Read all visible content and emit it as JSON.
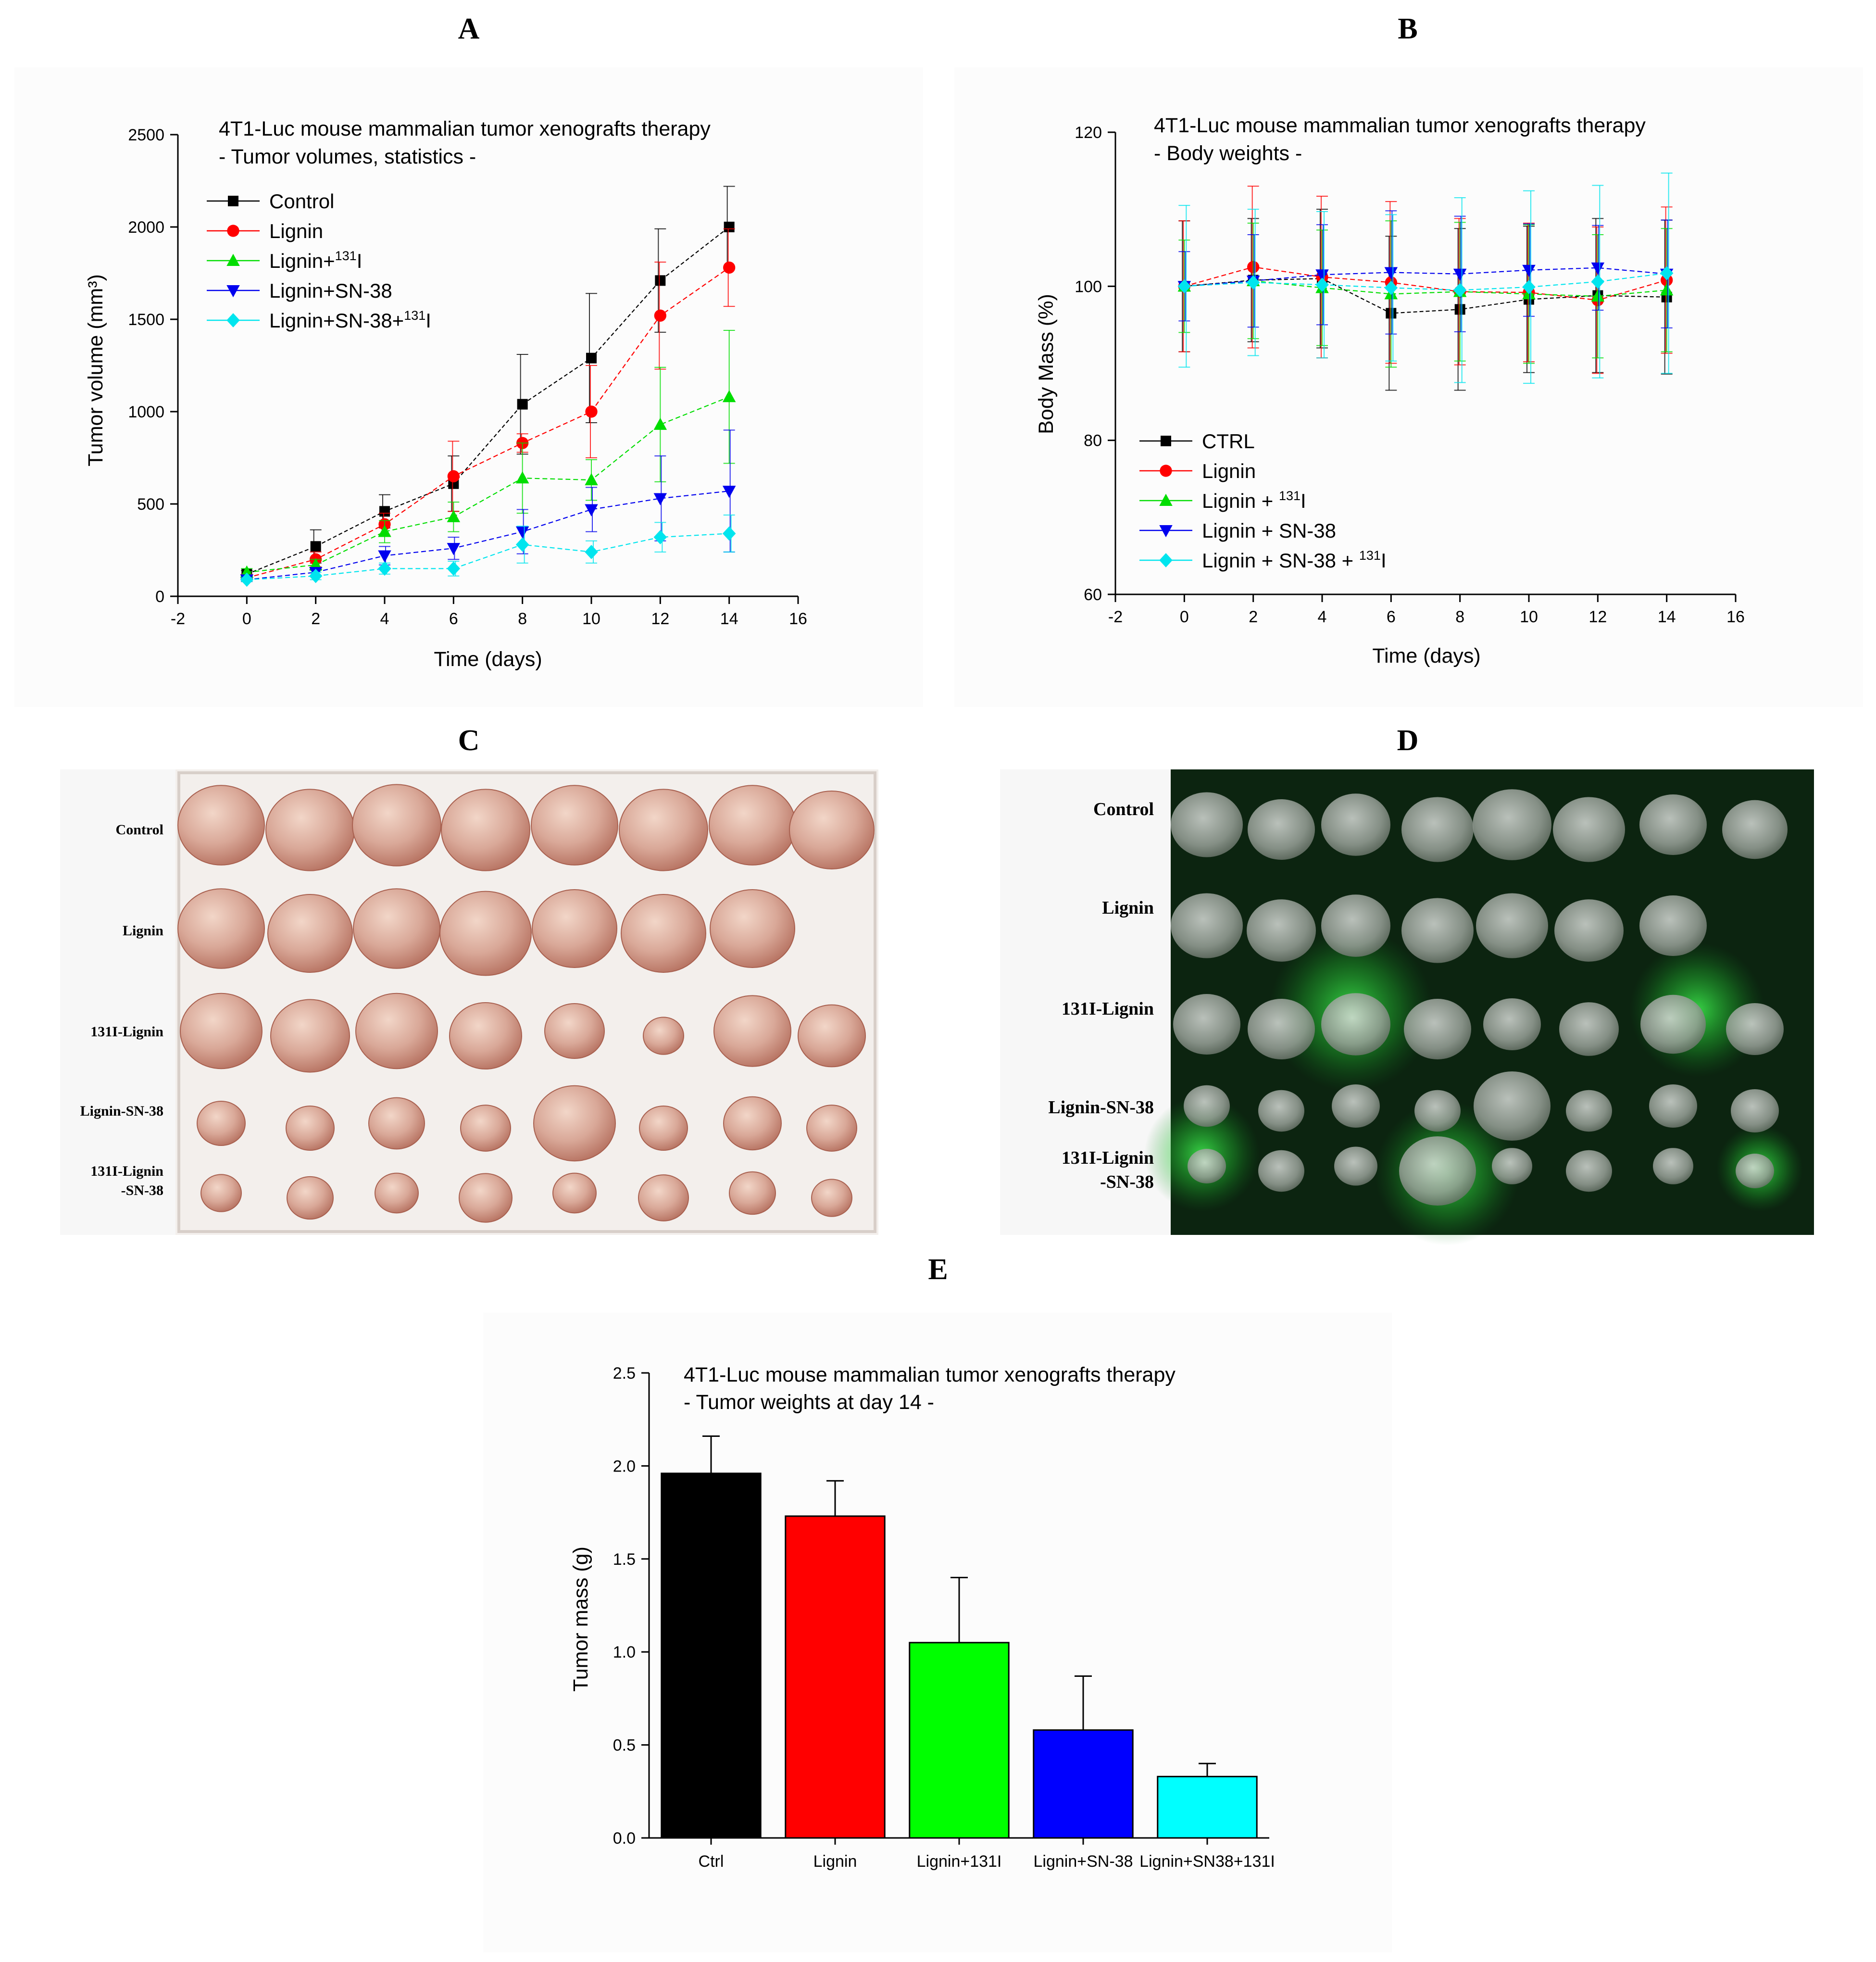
{
  "panel_letters": {
    "a": "A",
    "b": "B",
    "c": "C",
    "d": "D",
    "e": "E"
  },
  "chart_data": [
    {
      "type": "line",
      "panel": "A",
      "title": "4T1-Luc mouse mammalian tumor xenografts therapy",
      "subtitle": "- Tumor volumes, statistics -",
      "xlabel": "Time (days)",
      "ylabel": "Tumor volume (mm³)",
      "xlim": [
        -2,
        16
      ],
      "ylim": [
        0,
        2500
      ],
      "xticks": [
        -2,
        0,
        2,
        4,
        6,
        8,
        10,
        12,
        14,
        16
      ],
      "yticks": [
        0,
        500,
        1000,
        1500,
        2000,
        2500
      ],
      "x": [
        0,
        2,
        4,
        6,
        8,
        10,
        12,
        14
      ],
      "legend_position": "top-left",
      "series": [
        {
          "name": "Control",
          "sup": "",
          "color": "#000000",
          "marker": "square",
          "values": [
            120,
            270,
            460,
            610,
            1040,
            1290,
            1710,
            2000
          ],
          "errors": [
            20,
            90,
            90,
            150,
            270,
            350,
            280,
            220
          ]
        },
        {
          "name": "Lignin",
          "sup": "",
          "color": "#ff0000",
          "marker": "circle",
          "values": [
            100,
            200,
            390,
            650,
            830,
            1000,
            1520,
            1780
          ],
          "errors": [
            20,
            40,
            60,
            190,
            50,
            250,
            290,
            210
          ]
        },
        {
          "name": "Lignin+",
          "sup": "131",
          "name_suffix": "I",
          "color": "#00dd00",
          "marker": "triangle-up",
          "values": [
            130,
            170,
            350,
            430,
            640,
            630,
            930,
            1080
          ],
          "errors": [
            20,
            30,
            60,
            80,
            190,
            110,
            310,
            360
          ]
        },
        {
          "name": "Lignin+SN-38",
          "sup": "",
          "color": "#0000ee",
          "marker": "triangle-down",
          "values": [
            90,
            130,
            220,
            260,
            350,
            470,
            530,
            570
          ],
          "errors": [
            10,
            20,
            50,
            60,
            120,
            120,
            230,
            330
          ]
        },
        {
          "name": "Lignin+SN-38+",
          "sup": "131",
          "name_suffix": "I",
          "color": "#00e5ee",
          "marker": "diamond",
          "values": [
            90,
            110,
            150,
            150,
            280,
            240,
            320,
            340
          ],
          "errors": [
            10,
            20,
            30,
            40,
            100,
            60,
            80,
            100
          ]
        }
      ]
    },
    {
      "type": "line",
      "panel": "B",
      "title": "4T1-Luc mouse mammalian tumor xenografts therapy",
      "subtitle": "- Body weights -",
      "xlabel": "Time (days)",
      "ylabel": "Body Mass (%)",
      "xlim": [
        -2,
        16
      ],
      "ylim": [
        60,
        120
      ],
      "xticks": [
        -2,
        0,
        2,
        4,
        6,
        8,
        10,
        12,
        14,
        16
      ],
      "yticks": [
        60,
        80,
        100,
        120
      ],
      "x": [
        0,
        2,
        4,
        6,
        8,
        10,
        12,
        14
      ],
      "legend_position": "bottom-left",
      "series": [
        {
          "name": "CTRL",
          "sup": "",
          "color": "#000000",
          "marker": "square",
          "values": [
            100,
            100.8,
            101,
            96.5,
            97,
            98.3,
            98.8,
            98.6
          ],
          "errors": [
            8.5,
            8,
            9,
            10,
            10.5,
            9.5,
            10,
            10
          ]
        },
        {
          "name": "Lignin",
          "sup": "",
          "color": "#ff0000",
          "marker": "circle",
          "values": [
            100,
            102.5,
            101.2,
            100.5,
            99.3,
            99.2,
            98.2,
            100.8
          ],
          "errors": [
            8.5,
            10.5,
            10.5,
            10.5,
            9.5,
            9,
            9.5,
            9.5
          ]
        },
        {
          "name": "Lignin + ",
          "sup": "131",
          "name_suffix": "I",
          "color": "#00dd00",
          "marker": "triangle-up",
          "values": [
            100,
            100.7,
            99.8,
            99,
            99.3,
            99,
            98.7,
            99.5
          ],
          "errors": [
            6,
            7.5,
            7.5,
            9.5,
            9,
            9,
            8,
            8
          ]
        },
        {
          "name": "Lignin + SN-38",
          "sup": "",
          "color": "#0000ee",
          "marker": "triangle-down",
          "values": [
            100,
            100.7,
            101.5,
            101.8,
            101.6,
            102.1,
            102.4,
            101.6
          ],
          "errors": [
            4.5,
            6,
            6.5,
            8,
            7.5,
            6,
            5.5,
            7
          ]
        },
        {
          "name": "Lignin + SN-38 + ",
          "sup": "131",
          "name_suffix": "I",
          "color": "#00e5ee",
          "marker": "diamond",
          "values": [
            100,
            100.5,
            100.2,
            99.8,
            99.5,
            99.9,
            100.6,
            101.7
          ],
          "errors": [
            10.5,
            9.5,
            9.5,
            9.5,
            12,
            12.5,
            12.5,
            13
          ]
        }
      ]
    },
    {
      "type": "bar",
      "panel": "E",
      "title": "4T1-Luc mouse mammalian tumor xenografts therapy",
      "subtitle": "- Tumor weights at day 14 -",
      "xlabel": "",
      "ylabel": "Tumor mass (g)",
      "ylim": [
        0,
        2.5
      ],
      "yticks": [
        "0.0",
        "0.5",
        "1.0",
        "1.5",
        "2.0",
        "2.5"
      ],
      "categories": [
        "Ctrl",
        "Lignin",
        "Lignin+131I",
        "Lignin+SN-38",
        "Lignin+SN38+131I"
      ],
      "values": [
        1.96,
        1.73,
        1.05,
        0.58,
        0.33
      ],
      "errors": [
        0.2,
        0.19,
        0.35,
        0.29,
        0.07
      ],
      "colors": [
        "#000000",
        "#ff0000",
        "#00ff00",
        "#0000ff",
        "#00ffff"
      ]
    }
  ],
  "photos": {
    "c": {
      "row_labels": [
        [
          "Control"
        ],
        [
          "Lignin"
        ],
        [
          "131I-Lignin"
        ],
        [
          "Lignin-SN-38"
        ],
        [
          "131I-Lignin",
          "-SN-38"
        ]
      ],
      "tray_color": "#f3efec",
      "tumor_color": "#d8a89c"
    },
    "d": {
      "row_labels": [
        [
          "Control"
        ],
        [
          "Lignin"
        ],
        [
          "131I-Lignin"
        ],
        [
          "Lignin-SN-38"
        ],
        [
          "131I-Lignin",
          "-SN-38"
        ]
      ],
      "background_color": "#0c2410",
      "glow_color": "#33ee44"
    }
  }
}
